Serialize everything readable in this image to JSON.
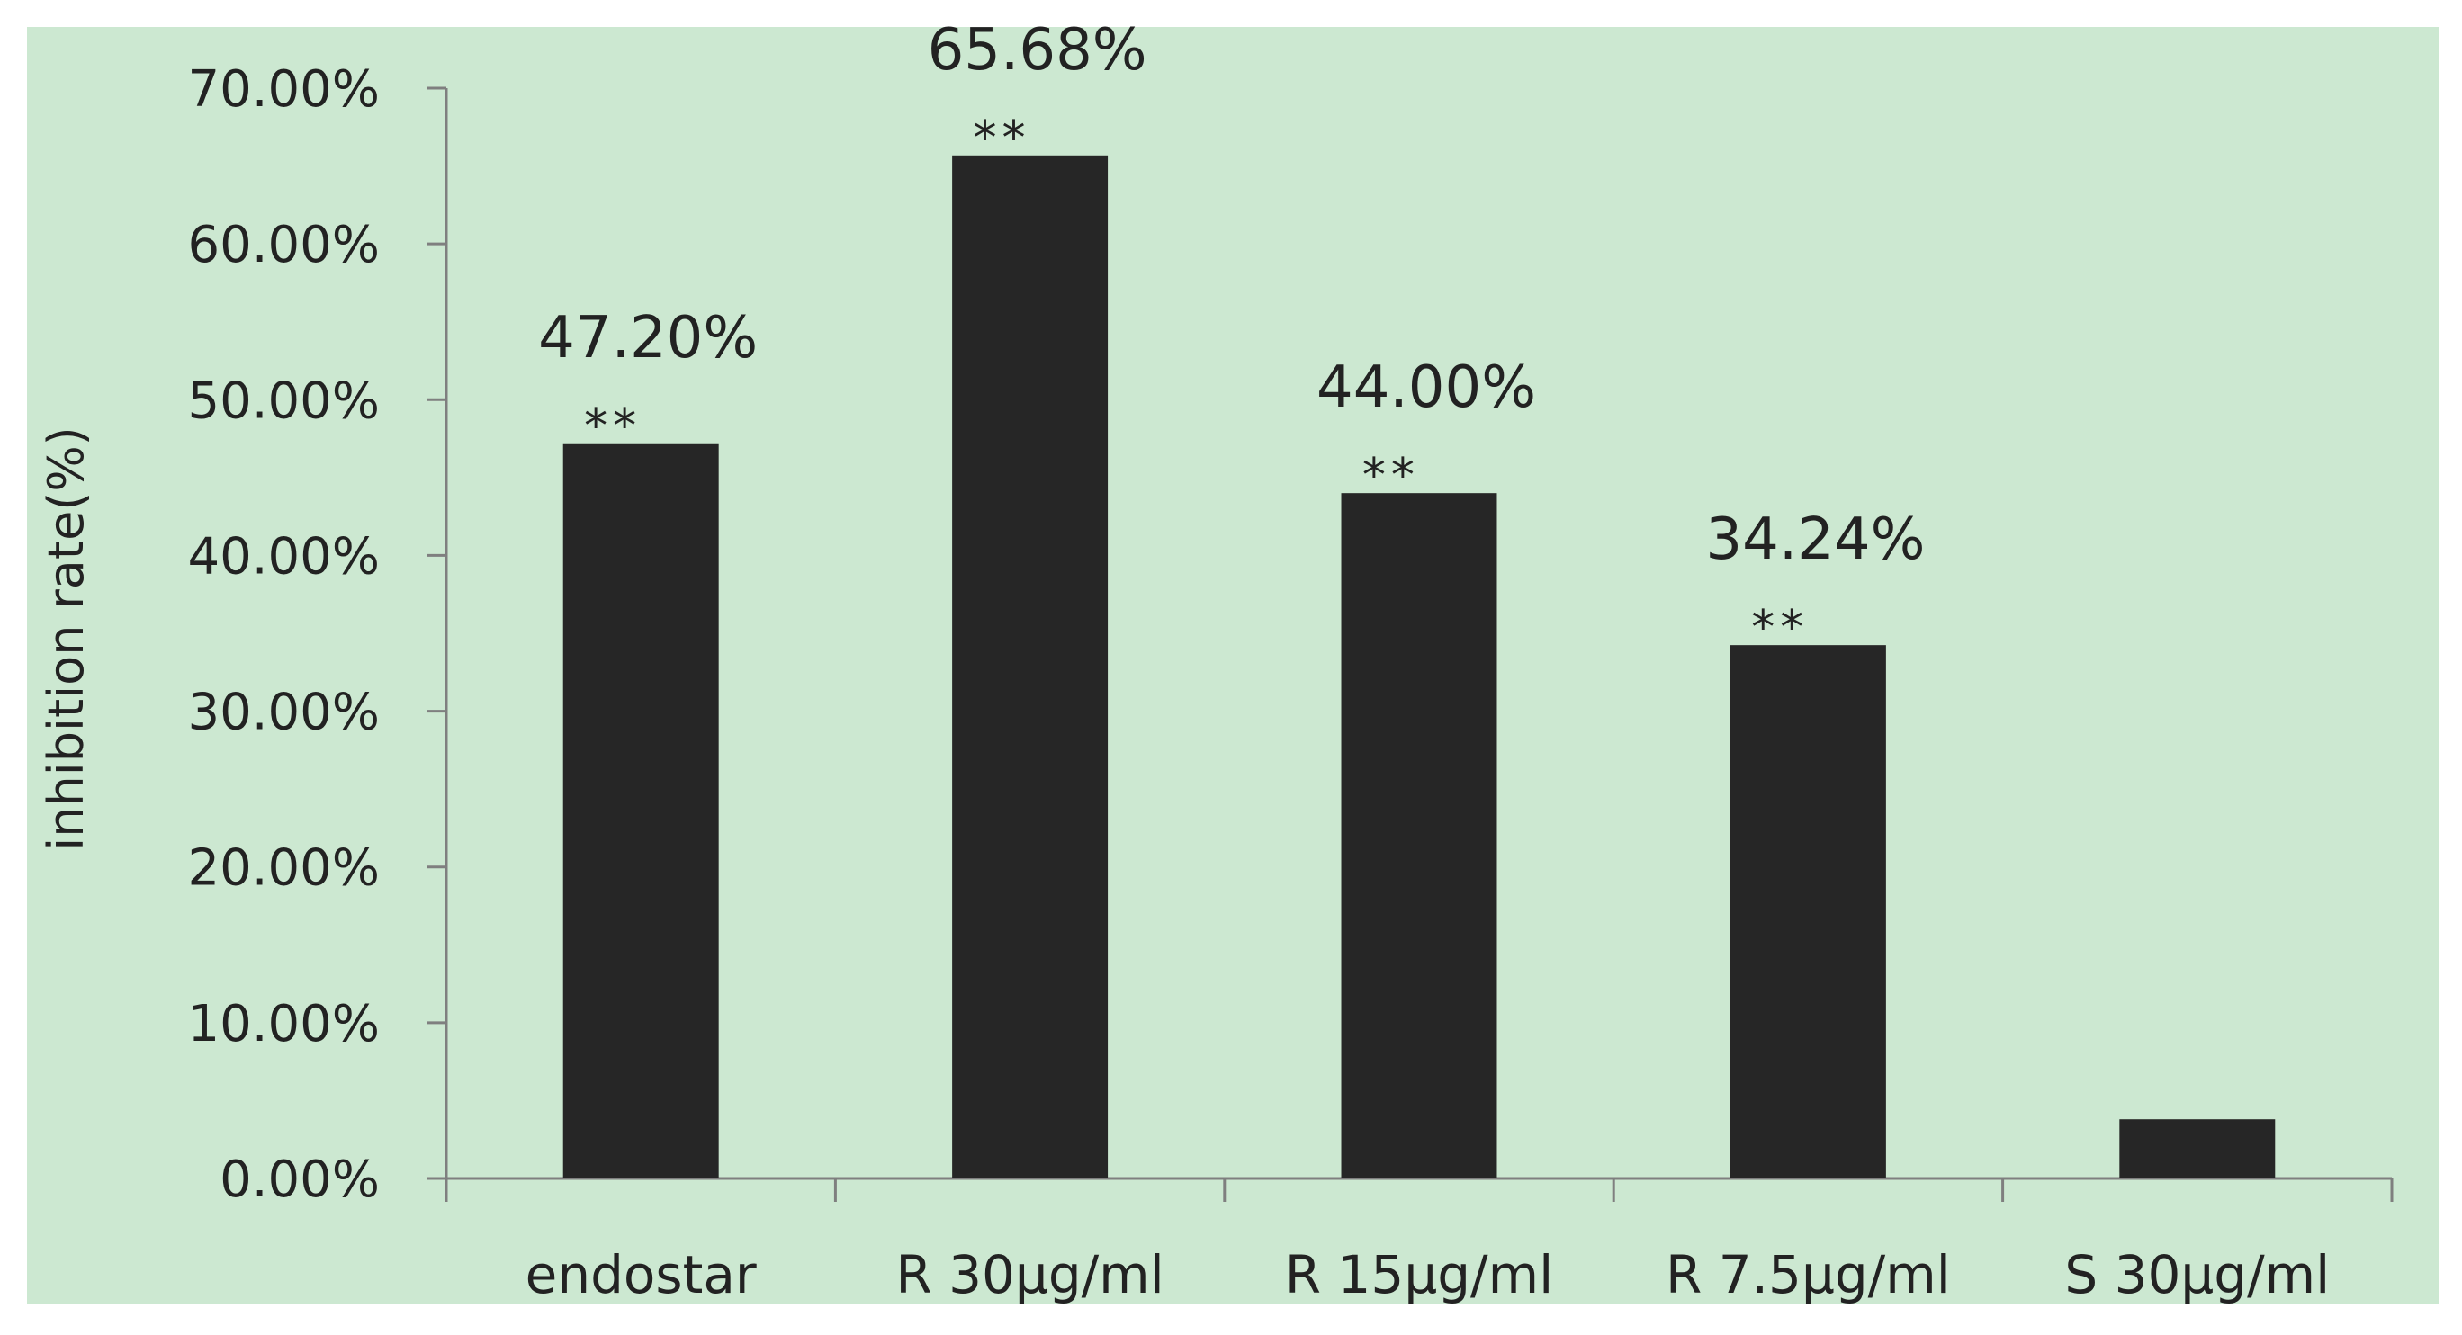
{
  "chart_data": {
    "type": "bar",
    "title": "",
    "xlabel": "",
    "ylabel": "inhibition rate(%)",
    "categories": [
      "endostar",
      "R 30μg/ml",
      "R 15μg/ml",
      "R 7.5μg/ml",
      "S 30μg/ml"
    ],
    "values": [
      47.2,
      65.68,
      44.0,
      34.24,
      3.8
    ],
    "data_labels": [
      "47.20%",
      "65.68%",
      "44.00%",
      "34.24%",
      ""
    ],
    "significance": [
      "**",
      "**",
      "**",
      "**",
      ""
    ],
    "ylim": [
      0,
      70
    ],
    "y_ticks": [
      "0.00%",
      "10.00%",
      "20.00%",
      "30.00%",
      "40.00%",
      "50.00%",
      "60.00%",
      "70.00%"
    ],
    "grid": false,
    "legend": "none",
    "colors": {
      "background": "#cce8d1",
      "bar": "#262626",
      "axis": "#7f7f7f",
      "text": "#222222"
    }
  }
}
